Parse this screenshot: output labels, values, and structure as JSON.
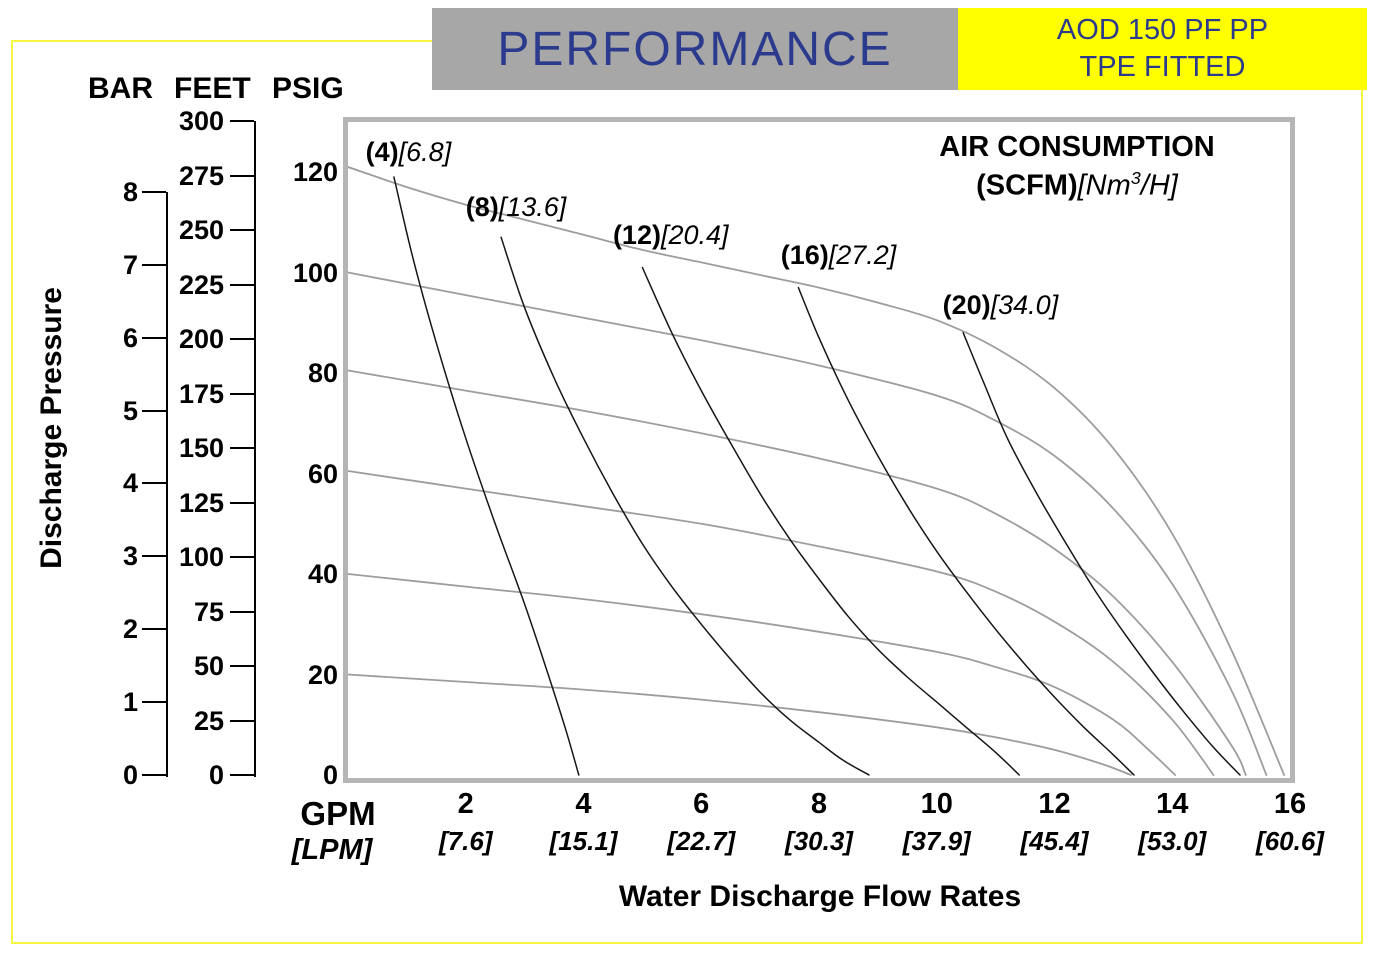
{
  "colors": {
    "navy": "#2b3a8c",
    "banner_gray": "#a7a7a7",
    "banner_yellow": "#ffff00",
    "frame_gray": "#b5b5b5",
    "pump_curve_gray": "#9d9d9d",
    "air_curve_black": "#161616",
    "page_border_yellow": "#f5f542"
  },
  "header": {
    "performance_label": "PERFORMANCE",
    "model_line1": "AOD 150 PF PP",
    "model_line2": "TPE FITTED"
  },
  "left_axes": {
    "title": "Discharge Pressure",
    "bar_label": "BAR",
    "feet_label": "FEET",
    "psig_label": "PSIG",
    "bar_ticks": [
      8,
      7,
      6,
      5,
      4,
      3,
      2,
      1,
      0
    ],
    "feet_ticks": [
      300,
      275,
      250,
      225,
      200,
      175,
      150,
      125,
      100,
      75,
      50,
      25,
      0
    ],
    "psig_ticks": [
      120,
      100,
      80,
      60,
      40,
      20,
      0
    ]
  },
  "x_axis": {
    "gpm_label": "GPM",
    "lpm_label": "[LPM]",
    "gpm_ticks": [
      2,
      4,
      6,
      8,
      10,
      12,
      14,
      16
    ],
    "lpm_ticks": [
      "[7.6]",
      "[15.1]",
      "[22.7]",
      "[30.3]",
      "[37.9]",
      "[45.4]",
      "[53.0]",
      "[60.6]"
    ],
    "title": "Water Discharge Flow Rates"
  },
  "plot": {
    "air_title": "AIR CONSUMPTION",
    "air_scfm": "(SCFM)",
    "air_nm_open": "[Nm",
    "air_nm_sup": "3",
    "air_nm_close": "/H]"
  },
  "chart_data": {
    "type": "line",
    "title": "AIR CONSUMPTION (SCFM)[Nm3/H]",
    "xlabel": "Water Discharge Flow Rates - GPM [LPM]",
    "ylabel": "Discharge Pressure - PSIG / FEET / BAR",
    "xlim": [
      0,
      16
    ],
    "ylim": [
      0,
      130
    ],
    "x_unit": "GPM",
    "y_unit": "PSIG",
    "grid": false,
    "legend": "inline curve labels",
    "series": [
      {
        "name": "pump-curve-120psig",
        "kind": "pump",
        "color": "#9d9d9d",
        "points": [
          [
            0,
            121
          ],
          [
            1,
            117
          ],
          [
            2,
            113.5
          ],
          [
            3,
            110.5
          ],
          [
            4,
            107.5
          ],
          [
            5,
            104.5
          ],
          [
            6,
            102
          ],
          [
            7,
            99.5
          ],
          [
            8,
            97
          ],
          [
            9,
            94
          ],
          [
            10,
            90.5
          ],
          [
            11,
            85
          ],
          [
            12,
            77
          ],
          [
            13,
            65
          ],
          [
            14,
            48
          ],
          [
            15,
            25
          ],
          [
            15.9,
            0
          ]
        ]
      },
      {
        "name": "pump-curve-100psig",
        "kind": "pump",
        "color": "#9d9d9d",
        "points": [
          [
            0,
            100
          ],
          [
            2,
            95.5
          ],
          [
            4,
            91
          ],
          [
            6,
            86.5
          ],
          [
            8,
            81.5
          ],
          [
            10,
            75.5
          ],
          [
            11,
            70.5
          ],
          [
            12,
            63.5
          ],
          [
            13,
            53
          ],
          [
            14,
            38
          ],
          [
            15,
            17
          ],
          [
            15.6,
            0
          ]
        ]
      },
      {
        "name": "pump-curve-80psig",
        "kind": "pump",
        "color": "#9d9d9d",
        "points": [
          [
            0,
            80.5
          ],
          [
            2,
            76.5
          ],
          [
            4,
            72.5
          ],
          [
            6,
            68
          ],
          [
            8,
            63
          ],
          [
            10,
            57
          ],
          [
            11,
            52
          ],
          [
            12,
            45
          ],
          [
            13,
            35.5
          ],
          [
            14,
            22.5
          ],
          [
            15,
            6
          ],
          [
            15.25,
            0
          ]
        ]
      },
      {
        "name": "pump-curve-60psig",
        "kind": "pump",
        "color": "#9d9d9d",
        "points": [
          [
            0,
            60.5
          ],
          [
            2,
            57
          ],
          [
            4,
            53.5
          ],
          [
            6,
            50
          ],
          [
            8,
            45.5
          ],
          [
            10,
            40.5
          ],
          [
            11,
            36.5
          ],
          [
            12,
            30.5
          ],
          [
            13,
            22.5
          ],
          [
            14,
            11
          ],
          [
            14.7,
            0
          ]
        ]
      },
      {
        "name": "pump-curve-40psig",
        "kind": "pump",
        "color": "#9d9d9d",
        "points": [
          [
            0,
            40
          ],
          [
            2,
            37.5
          ],
          [
            4,
            35
          ],
          [
            6,
            32
          ],
          [
            8,
            28.5
          ],
          [
            10,
            24.5
          ],
          [
            11,
            21.5
          ],
          [
            12,
            17.5
          ],
          [
            13,
            11
          ],
          [
            13.6,
            5
          ],
          [
            14.05,
            0
          ]
        ]
      },
      {
        "name": "pump-curve-20psig",
        "kind": "pump",
        "color": "#9d9d9d",
        "points": [
          [
            0,
            20
          ],
          [
            2,
            18.5
          ],
          [
            4,
            17
          ],
          [
            6,
            15
          ],
          [
            8,
            12.5
          ],
          [
            10,
            9.5
          ],
          [
            11,
            7.5
          ],
          [
            12,
            5
          ],
          [
            12.8,
            2.2
          ],
          [
            13.3,
            0
          ]
        ]
      },
      {
        "name": "air-curve-4-scfm",
        "kind": "air",
        "color": "#161616",
        "label_scfm": "(4)",
        "label_nm3h": "[6.8]",
        "label_x": 0.3,
        "label_y": 124,
        "points": [
          [
            0.78,
            119
          ],
          [
            1.1,
            103
          ],
          [
            1.5,
            86
          ],
          [
            2.0,
            67
          ],
          [
            2.5,
            50
          ],
          [
            3.0,
            34
          ],
          [
            3.4,
            20
          ],
          [
            3.7,
            9
          ],
          [
            3.92,
            0
          ]
        ]
      },
      {
        "name": "air-curve-8-scfm",
        "kind": "air",
        "color": "#161616",
        "label_scfm": "(8)",
        "label_nm3h": "[13.6]",
        "label_x": 2.0,
        "label_y": 113,
        "points": [
          [
            2.6,
            107
          ],
          [
            3.0,
            93
          ],
          [
            3.5,
            79
          ],
          [
            4.0,
            67
          ],
          [
            4.5,
            56
          ],
          [
            5.0,
            46
          ],
          [
            5.5,
            37.5
          ],
          [
            6.0,
            30
          ],
          [
            6.5,
            23
          ],
          [
            7.0,
            16.5
          ],
          [
            7.5,
            11
          ],
          [
            8.0,
            6.5
          ],
          [
            8.4,
            3
          ],
          [
            8.85,
            0
          ]
        ]
      },
      {
        "name": "air-curve-12-scfm",
        "kind": "air",
        "color": "#161616",
        "label_scfm": "(12)",
        "label_nm3h": "[20.4]",
        "label_x": 4.5,
        "label_y": 107.5,
        "points": [
          [
            5.0,
            101
          ],
          [
            5.5,
            88
          ],
          [
            6.0,
            76.5
          ],
          [
            6.5,
            66
          ],
          [
            7.0,
            56
          ],
          [
            7.5,
            47
          ],
          [
            8.0,
            39
          ],
          [
            8.5,
            31.5
          ],
          [
            9.0,
            25
          ],
          [
            9.5,
            19.5
          ],
          [
            10.0,
            14.5
          ],
          [
            10.5,
            9.5
          ],
          [
            11.0,
            4.5
          ],
          [
            11.4,
            0
          ]
        ]
      },
      {
        "name": "air-curve-16-scfm",
        "kind": "air",
        "color": "#161616",
        "label_scfm": "(16)",
        "label_nm3h": "[27.2]",
        "label_x": 7.35,
        "label_y": 103.5,
        "points": [
          [
            7.65,
            97
          ],
          [
            8.0,
            87
          ],
          [
            8.5,
            74.5
          ],
          [
            9.0,
            63.5
          ],
          [
            9.5,
            53.5
          ],
          [
            10.0,
            44.5
          ],
          [
            10.5,
            36.5
          ],
          [
            11.0,
            29
          ],
          [
            11.5,
            22
          ],
          [
            12.0,
            15.5
          ],
          [
            12.5,
            9.5
          ],
          [
            13.0,
            4
          ],
          [
            13.35,
            0
          ]
        ]
      },
      {
        "name": "air-curve-20-scfm",
        "kind": "air",
        "color": "#161616",
        "label_scfm": "(20)",
        "label_nm3h": "[34.0]",
        "label_x": 10.1,
        "label_y": 93.5,
        "points": [
          [
            10.45,
            88
          ],
          [
            10.8,
            78
          ],
          [
            11.2,
            67
          ],
          [
            11.7,
            56
          ],
          [
            12.2,
            46
          ],
          [
            12.7,
            36.5
          ],
          [
            13.2,
            28
          ],
          [
            13.7,
            20
          ],
          [
            14.2,
            12.5
          ],
          [
            14.7,
            5.5
          ],
          [
            15.15,
            0
          ]
        ]
      }
    ]
  }
}
